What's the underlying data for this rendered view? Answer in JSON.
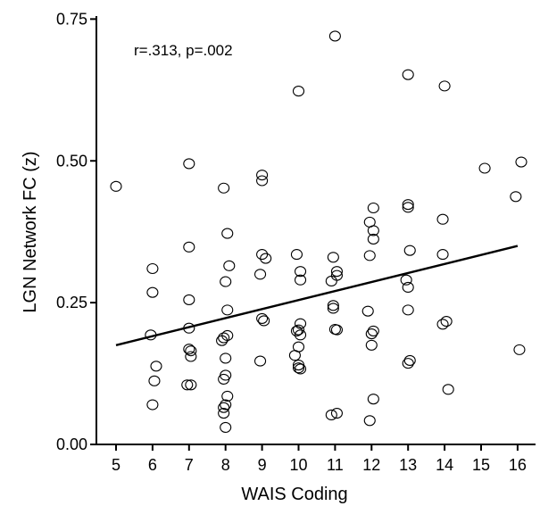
{
  "chart_data": {
    "type": "scatter",
    "xlabel": "WAIS Coding",
    "ylabel": "LGN Network FC (z)",
    "annotation": "r=.313, p=.002",
    "xlim": [
      4.5,
      16.6
    ],
    "ylim": [
      0.0,
      0.75
    ],
    "x_ticks": [
      "5",
      "6",
      "7",
      "8",
      "9",
      "10",
      "11",
      "12",
      "13",
      "14",
      "15",
      "16"
    ],
    "y_ticks": [
      "0.00",
      "0.25",
      "0.50",
      "0.75"
    ],
    "grid": false,
    "fit_line": {
      "x": [
        5,
        16
      ],
      "y": [
        0.175,
        0.35
      ]
    },
    "points": [
      {
        "x": 5,
        "y": 0.455
      },
      {
        "x": 6,
        "y": 0.31
      },
      {
        "x": 6,
        "y": 0.268
      },
      {
        "x": 5.95,
        "y": 0.193
      },
      {
        "x": 6.1,
        "y": 0.138
      },
      {
        "x": 6.05,
        "y": 0.112
      },
      {
        "x": 6,
        "y": 0.07
      },
      {
        "x": 7,
        "y": 0.495
      },
      {
        "x": 7,
        "y": 0.348
      },
      {
        "x": 7,
        "y": 0.255
      },
      {
        "x": 7,
        "y": 0.205
      },
      {
        "x": 7,
        "y": 0.168
      },
      {
        "x": 7.05,
        "y": 0.165
      },
      {
        "x": 7.05,
        "y": 0.155
      },
      {
        "x": 6.95,
        "y": 0.105
      },
      {
        "x": 7.05,
        "y": 0.105
      },
      {
        "x": 7.95,
        "y": 0.452
      },
      {
        "x": 8.05,
        "y": 0.372
      },
      {
        "x": 8.1,
        "y": 0.315
      },
      {
        "x": 8,
        "y": 0.287
      },
      {
        "x": 8.05,
        "y": 0.237
      },
      {
        "x": 8.05,
        "y": 0.192
      },
      {
        "x": 7.95,
        "y": 0.188
      },
      {
        "x": 7.9,
        "y": 0.183
      },
      {
        "x": 8,
        "y": 0.152
      },
      {
        "x": 8,
        "y": 0.122
      },
      {
        "x": 7.95,
        "y": 0.115
      },
      {
        "x": 8.05,
        "y": 0.085
      },
      {
        "x": 8,
        "y": 0.07
      },
      {
        "x": 7.95,
        "y": 0.065
      },
      {
        "x": 7.95,
        "y": 0.055
      },
      {
        "x": 8,
        "y": 0.03
      },
      {
        "x": 9,
        "y": 0.475
      },
      {
        "x": 9,
        "y": 0.465
      },
      {
        "x": 9,
        "y": 0.335
      },
      {
        "x": 9.1,
        "y": 0.328
      },
      {
        "x": 8.95,
        "y": 0.3
      },
      {
        "x": 9,
        "y": 0.222
      },
      {
        "x": 9.05,
        "y": 0.218
      },
      {
        "x": 8.95,
        "y": 0.147
      },
      {
        "x": 10,
        "y": 0.623
      },
      {
        "x": 9.95,
        "y": 0.335
      },
      {
        "x": 10.05,
        "y": 0.305
      },
      {
        "x": 10.05,
        "y": 0.29
      },
      {
        "x": 10.05,
        "y": 0.213
      },
      {
        "x": 9.95,
        "y": 0.2
      },
      {
        "x": 10,
        "y": 0.202
      },
      {
        "x": 10.05,
        "y": 0.193
      },
      {
        "x": 10,
        "y": 0.172
      },
      {
        "x": 9.9,
        "y": 0.157
      },
      {
        "x": 10,
        "y": 0.14
      },
      {
        "x": 10,
        "y": 0.135
      },
      {
        "x": 10.05,
        "y": 0.133
      },
      {
        "x": 11,
        "y": 0.72
      },
      {
        "x": 10.95,
        "y": 0.33
      },
      {
        "x": 11.05,
        "y": 0.305
      },
      {
        "x": 11.05,
        "y": 0.298
      },
      {
        "x": 10.9,
        "y": 0.288
      },
      {
        "x": 10.95,
        "y": 0.245
      },
      {
        "x": 10.95,
        "y": 0.24
      },
      {
        "x": 11,
        "y": 0.203
      },
      {
        "x": 11.05,
        "y": 0.202
      },
      {
        "x": 10.9,
        "y": 0.052
      },
      {
        "x": 11.05,
        "y": 0.055
      },
      {
        "x": 12.05,
        "y": 0.417
      },
      {
        "x": 11.95,
        "y": 0.392
      },
      {
        "x": 12.05,
        "y": 0.377
      },
      {
        "x": 12.05,
        "y": 0.362
      },
      {
        "x": 11.95,
        "y": 0.333
      },
      {
        "x": 11.9,
        "y": 0.235
      },
      {
        "x": 12.05,
        "y": 0.2
      },
      {
        "x": 12,
        "y": 0.195
      },
      {
        "x": 12,
        "y": 0.175
      },
      {
        "x": 12.05,
        "y": 0.08
      },
      {
        "x": 11.95,
        "y": 0.042
      },
      {
        "x": 13,
        "y": 0.652
      },
      {
        "x": 13,
        "y": 0.423
      },
      {
        "x": 13,
        "y": 0.418
      },
      {
        "x": 13.05,
        "y": 0.342
      },
      {
        "x": 12.95,
        "y": 0.29
      },
      {
        "x": 13,
        "y": 0.277
      },
      {
        "x": 13,
        "y": 0.237
      },
      {
        "x": 13.05,
        "y": 0.148
      },
      {
        "x": 13,
        "y": 0.143
      },
      {
        "x": 14,
        "y": 0.632
      },
      {
        "x": 13.95,
        "y": 0.397
      },
      {
        "x": 13.95,
        "y": 0.335
      },
      {
        "x": 14.05,
        "y": 0.217
      },
      {
        "x": 13.95,
        "y": 0.212
      },
      {
        "x": 14.1,
        "y": 0.097
      },
      {
        "x": 15.1,
        "y": 0.487
      },
      {
        "x": 16.1,
        "y": 0.498
      },
      {
        "x": 15.95,
        "y": 0.437
      },
      {
        "x": 16.05,
        "y": 0.167
      }
    ]
  }
}
